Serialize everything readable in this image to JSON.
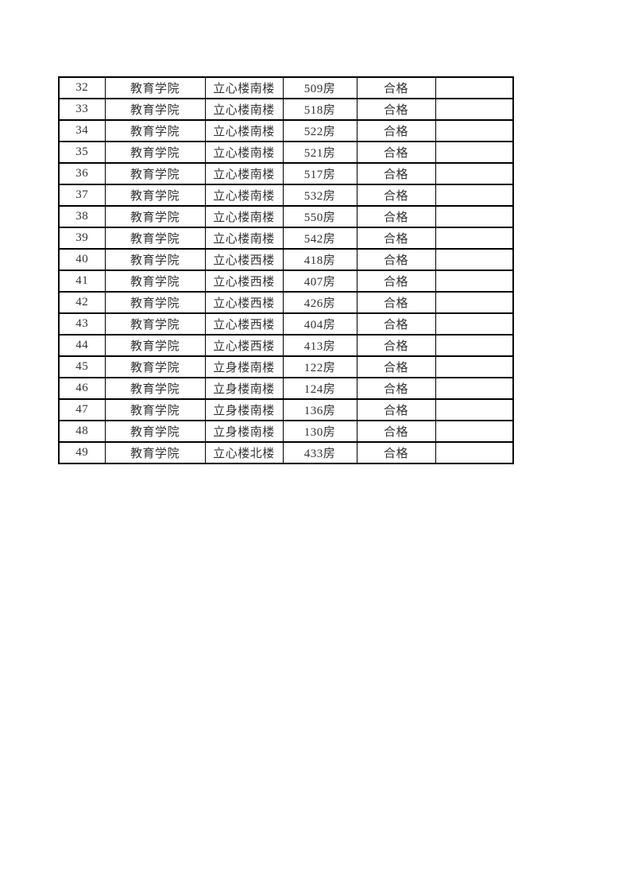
{
  "page": {
    "background_color": "#ffffff",
    "border_color": "#000000",
    "text_color": "#333333"
  },
  "table": {
    "columns": [
      "row-number",
      "college",
      "building",
      "room",
      "status",
      "notes"
    ],
    "rows": [
      {
        "no": "32",
        "college": "教育学院",
        "building": "立心楼南楼",
        "room": "509房",
        "status": "合格",
        "notes": ""
      },
      {
        "no": "33",
        "college": "教育学院",
        "building": "立心楼南楼",
        "room": "518房",
        "status": "合格",
        "notes": ""
      },
      {
        "no": "34",
        "college": "教育学院",
        "building": "立心楼南楼",
        "room": "522房",
        "status": "合格",
        "notes": ""
      },
      {
        "no": "35",
        "college": "教育学院",
        "building": "立心楼南楼",
        "room": "521房",
        "status": "合格",
        "notes": ""
      },
      {
        "no": "36",
        "college": "教育学院",
        "building": "立心楼南楼",
        "room": "517房",
        "status": "合格",
        "notes": ""
      },
      {
        "no": "37",
        "college": "教育学院",
        "building": "立心楼南楼",
        "room": "532房",
        "status": "合格",
        "notes": ""
      },
      {
        "no": "38",
        "college": "教育学院",
        "building": "立心楼南楼",
        "room": "550房",
        "status": "合格",
        "notes": ""
      },
      {
        "no": "39",
        "college": "教育学院",
        "building": "立心楼南楼",
        "room": "542房",
        "status": "合格",
        "notes": ""
      },
      {
        "no": "40",
        "college": "教育学院",
        "building": "立心楼西楼",
        "room": "418房",
        "status": "合格",
        "notes": ""
      },
      {
        "no": "41",
        "college": "教育学院",
        "building": "立心楼西楼",
        "room": "407房",
        "status": "合格",
        "notes": ""
      },
      {
        "no": "42",
        "college": "教育学院",
        "building": "立心楼西楼",
        "room": "426房",
        "status": "合格",
        "notes": ""
      },
      {
        "no": "43",
        "college": "教育学院",
        "building": "立心楼西楼",
        "room": "404房",
        "status": "合格",
        "notes": ""
      },
      {
        "no": "44",
        "college": "教育学院",
        "building": "立心楼西楼",
        "room": "413房",
        "status": "合格",
        "notes": ""
      },
      {
        "no": "45",
        "college": "教育学院",
        "building": "立身楼南楼",
        "room": "122房",
        "status": "合格",
        "notes": ""
      },
      {
        "no": "46",
        "college": "教育学院",
        "building": "立身楼南楼",
        "room": "124房",
        "status": "合格",
        "notes": ""
      },
      {
        "no": "47",
        "college": "教育学院",
        "building": "立身楼南楼",
        "room": "136房",
        "status": "合格",
        "notes": ""
      },
      {
        "no": "48",
        "college": "教育学院",
        "building": "立身楼南楼",
        "room": "130房",
        "status": "合格",
        "notes": ""
      },
      {
        "no": "49",
        "college": "教育学院",
        "building": "立心楼北楼",
        "room": "433房",
        "status": "合格",
        "notes": ""
      }
    ]
  }
}
